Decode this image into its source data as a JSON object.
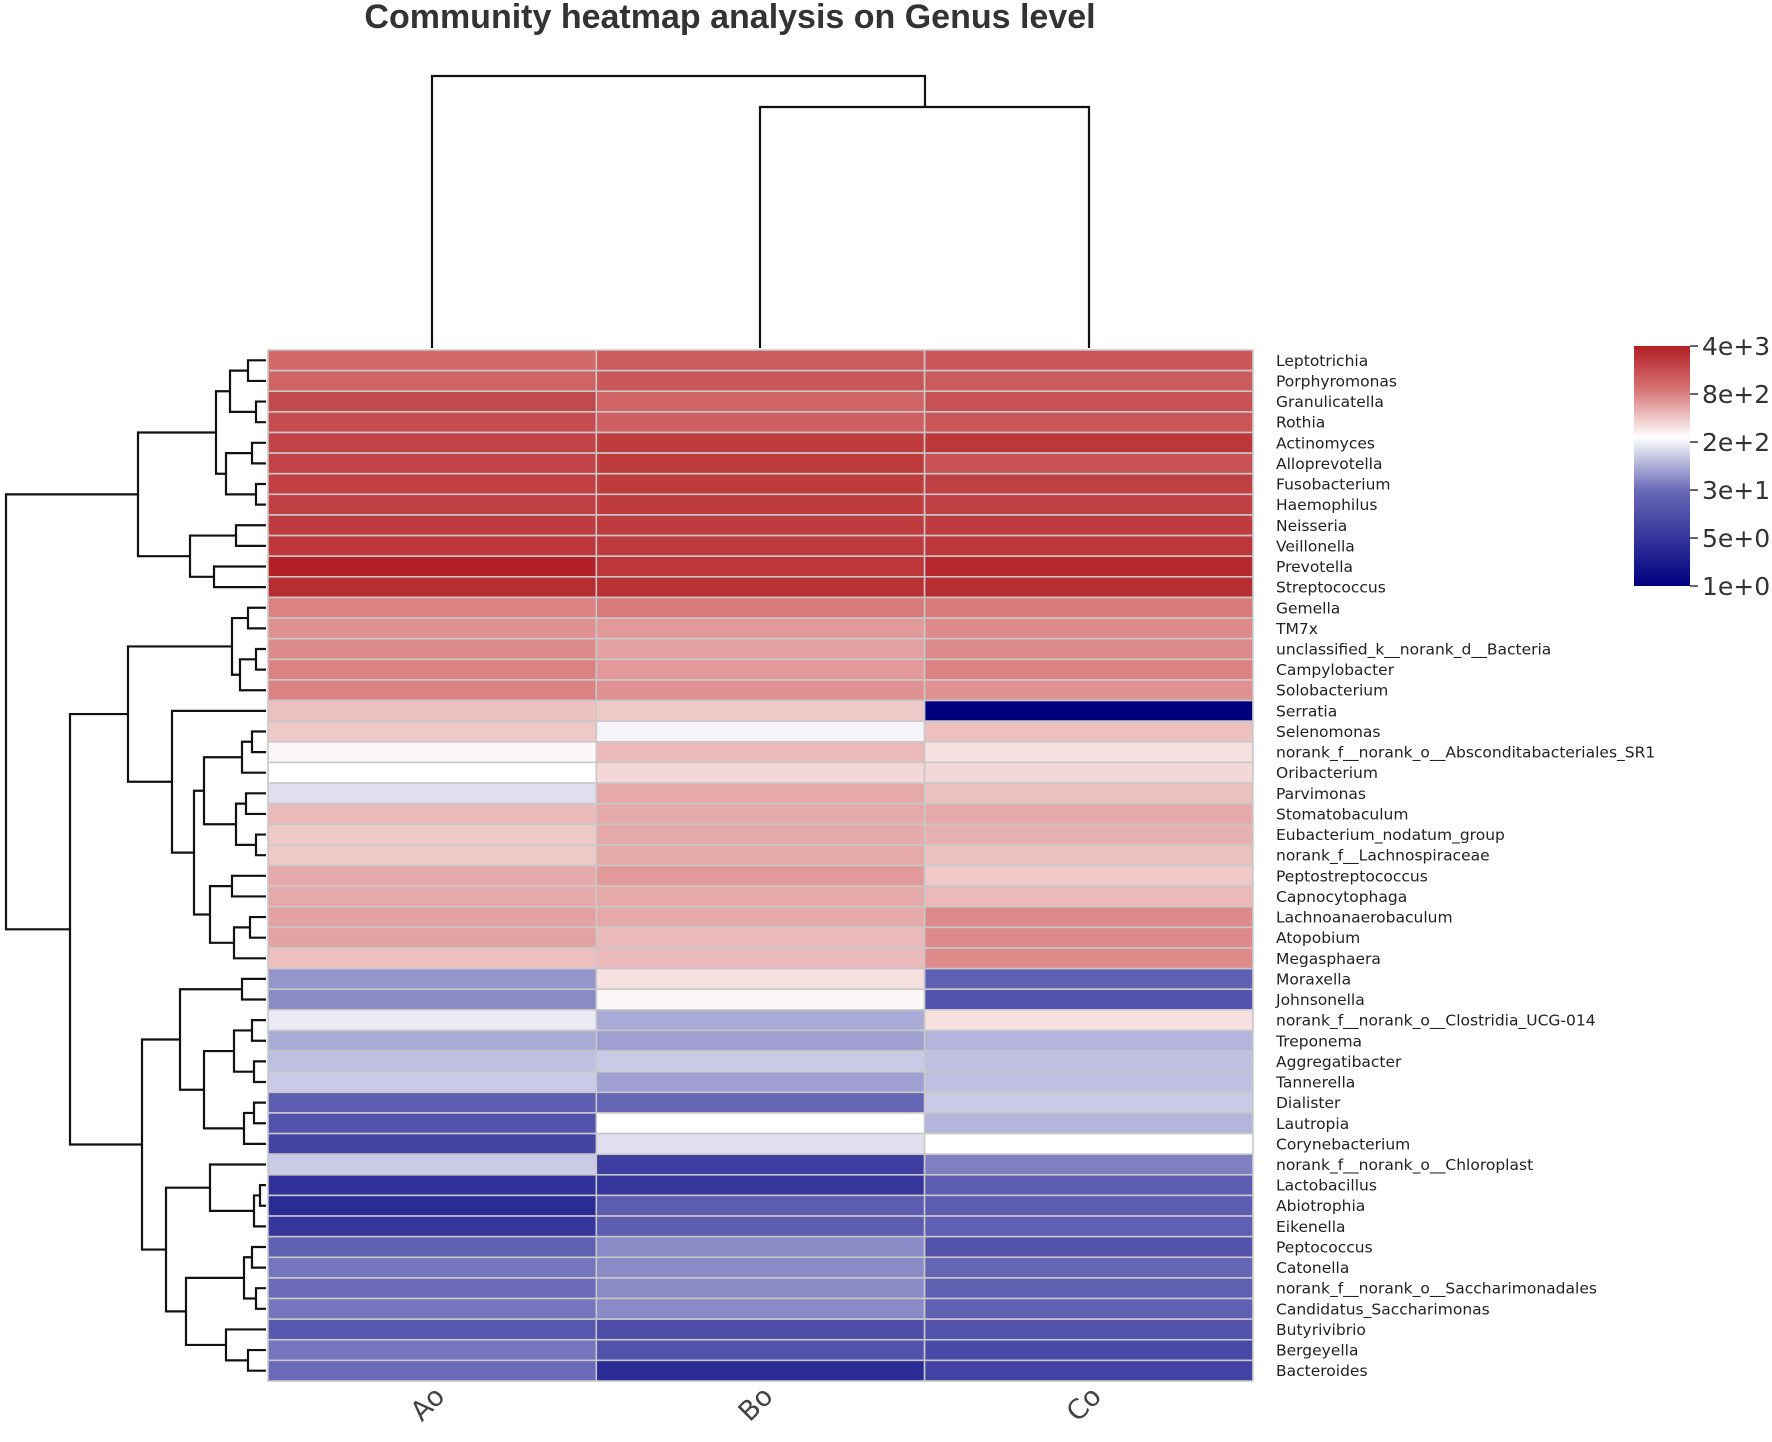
{
  "chart_data": {
    "type": "heatmap",
    "title": "Community heatmap analysis on Genus level",
    "columns": [
      "Ao",
      "Bo",
      "Co"
    ],
    "rows": [
      "Leptotrichia",
      "Porphyromonas",
      "Granulicatella",
      "Rothia",
      "Actinomyces",
      "Alloprevotella",
      "Fusobacterium",
      "Haemophilus",
      "Neisseria",
      "Veillonella",
      "Prevotella",
      "Streptococcus",
      "Gemella",
      "TM7x",
      "unclassified_k__norank_d__Bacteria",
      "Campylobacter",
      "Solobacterium",
      "Serratia",
      "Selenomonas",
      "norank_f__norank_o__Absconditabacteriales_SR1",
      "Oribacterium",
      "Parvimonas",
      "Stomatobaculum",
      "Eubacterium_nodatum_group",
      "norank_f__Lachnospiraceae",
      "Peptostreptococcus",
      "Capnocytophaga",
      "Lachnoanaerobaculum",
      "Atopobium",
      "Megasphaera",
      "Moraxella",
      "Johnsonella",
      "norank_f__norank_o__Clostridia_UCG-014",
      "Treponema",
      "Aggregatibacter",
      "Tannerella",
      "Dialister",
      "Lautropia",
      "Corynebacterium",
      "norank_f__norank_o__Chloroplast",
      "Lactobacillus",
      "Abiotrophia",
      "Eikenella",
      "Peptococcus",
      "Catonella",
      "norank_f__norank_o__Saccharimonadales",
      "Candidatus_Saccharimonas",
      "Butyrivibrio",
      "Bergeyella",
      "Bacteroides"
    ],
    "values_log10": [
      [
        2.8,
        2.95,
        3.0
      ],
      [
        2.85,
        3.0,
        2.95
      ],
      [
        3.15,
        2.85,
        3.05
      ],
      [
        3.1,
        2.9,
        3.0
      ],
      [
        3.2,
        3.3,
        3.35
      ],
      [
        3.2,
        3.3,
        3.05
      ],
      [
        3.25,
        3.3,
        3.25
      ],
      [
        3.25,
        3.3,
        3.25
      ],
      [
        3.3,
        3.3,
        3.3
      ],
      [
        3.35,
        3.3,
        3.35
      ],
      [
        3.6,
        3.35,
        3.5
      ],
      [
        3.45,
        3.4,
        3.45
      ],
      [
        2.6,
        2.65,
        2.65
      ],
      [
        2.5,
        2.45,
        2.55
      ],
      [
        2.55,
        2.4,
        2.55
      ],
      [
        2.6,
        2.45,
        2.6
      ],
      [
        2.6,
        2.5,
        2.5
      ],
      [
        2.2,
        2.15,
        0.0
      ],
      [
        2.15,
        1.75,
        2.2
      ],
      [
        1.85,
        2.25,
        2.0
      ],
      [
        1.8,
        2.05,
        2.05
      ],
      [
        1.65,
        2.35,
        2.2
      ],
      [
        2.25,
        2.35,
        2.35
      ],
      [
        2.15,
        2.35,
        2.3
      ],
      [
        2.15,
        2.35,
        2.2
      ],
      [
        2.35,
        2.45,
        2.15
      ],
      [
        2.35,
        2.35,
        2.25
      ],
      [
        2.4,
        2.35,
        2.55
      ],
      [
        2.4,
        2.25,
        2.55
      ],
      [
        2.2,
        2.25,
        2.55
      ],
      [
        1.3,
        2.0,
        1.0
      ],
      [
        1.25,
        1.85,
        0.85
      ],
      [
        1.7,
        1.4,
        2.0
      ],
      [
        1.4,
        1.35,
        1.45
      ],
      [
        1.5,
        1.55,
        1.5
      ],
      [
        1.55,
        1.35,
        1.5
      ],
      [
        0.95,
        1.05,
        1.55
      ],
      [
        0.85,
        1.8,
        1.45
      ],
      [
        0.7,
        1.65,
        1.8
      ],
      [
        1.55,
        0.65,
        1.2
      ],
      [
        0.5,
        0.55,
        0.95
      ],
      [
        0.45,
        0.95,
        0.95
      ],
      [
        0.55,
        0.95,
        1.0
      ],
      [
        1.0,
        1.25,
        0.85
      ],
      [
        1.15,
        1.25,
        1.05
      ],
      [
        1.1,
        1.25,
        1.0
      ],
      [
        1.15,
        1.25,
        1.0
      ],
      [
        0.9,
        0.8,
        0.85
      ],
      [
        1.15,
        0.85,
        0.75
      ],
      [
        1.1,
        0.45,
        0.7
      ]
    ],
    "legend": {
      "labels": [
        "4e+3",
        "8e+2",
        "2e+2",
        "3e+1",
        "5e+0",
        "1e+0"
      ],
      "colors": [
        "#b21f24",
        "#d67272",
        "#ffffff",
        "#6a6ab8",
        "#00007f"
      ]
    }
  }
}
